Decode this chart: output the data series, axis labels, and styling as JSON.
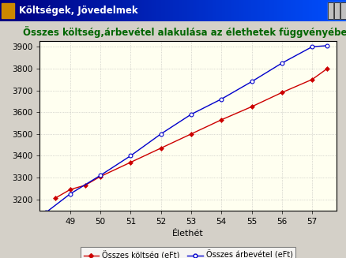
{
  "title": "Összes költség,árbevétel alakulása az élethetek függvényében",
  "xlabel": "Élethét",
  "x_koltseg": [
    48.5,
    49,
    49.5,
    50,
    51,
    52,
    53,
    54,
    55,
    56,
    57,
    57.5
  ],
  "x_arbevetel": [
    48.2,
    49,
    50,
    51,
    52,
    53,
    54,
    55,
    56,
    57,
    57.5
  ],
  "osszes_koltseg": [
    3205,
    3245,
    3265,
    3305,
    3370,
    3435,
    3500,
    3565,
    3625,
    3690,
    3750,
    3800
  ],
  "osszes_arbevetel": [
    3140,
    3225,
    3310,
    3400,
    3500,
    3590,
    3660,
    3740,
    3825,
    3900,
    3905
  ],
  "koltseg_color": "#cc0000",
  "arbevetel_color": "#0000cc",
  "plot_bg": "#fffff0",
  "outer_bg": "#d4d0c8",
  "inner_frame_bg": "#f0f0f0",
  "grid_color": "#b0b0b0",
  "ylim": [
    3150,
    3925
  ],
  "xlim": [
    48.0,
    57.8
  ],
  "yticks": [
    3200,
    3300,
    3400,
    3500,
    3600,
    3700,
    3800,
    3900
  ],
  "xticks": [
    49,
    50,
    51,
    52,
    53,
    54,
    55,
    56,
    57
  ],
  "legend1": "Összes költség (eFt)",
  "legend2": "Összes árbevétel (eFt)",
  "title_color": "#006600",
  "title_fontsize": 8.5,
  "axis_fontsize": 8,
  "tick_fontsize": 7.5,
  "legend_fontsize": 7,
  "titlebar_text": "Költségek, Jövedelmek",
  "titlebar_fontsize": 8.5
}
